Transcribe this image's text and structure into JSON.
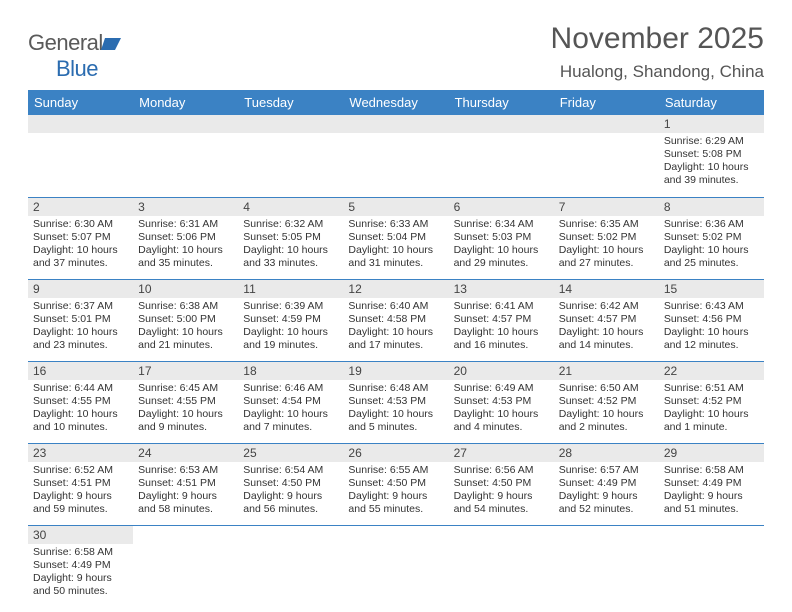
{
  "logo": {
    "text1": "General",
    "text2": "Blue"
  },
  "title": "November 2025",
  "subtitle": "Hualong, Shandong, China",
  "colors": {
    "header_bg": "#3b82c4",
    "header_fg": "#ffffff",
    "daynum_bg": "#eaeaea",
    "row_border": "#3b82c4",
    "title_color": "#555555",
    "logo_gray": "#5a5a5a",
    "logo_blue": "#2b6cb0"
  },
  "weekdays": [
    "Sunday",
    "Monday",
    "Tuesday",
    "Wednesday",
    "Thursday",
    "Friday",
    "Saturday"
  ],
  "first_weekday_index": 6,
  "days": [
    {
      "n": 1,
      "sunrise": "6:29 AM",
      "sunset": "5:08 PM",
      "dl_h": 10,
      "dl_m": 39
    },
    {
      "n": 2,
      "sunrise": "6:30 AM",
      "sunset": "5:07 PM",
      "dl_h": 10,
      "dl_m": 37
    },
    {
      "n": 3,
      "sunrise": "6:31 AM",
      "sunset": "5:06 PM",
      "dl_h": 10,
      "dl_m": 35
    },
    {
      "n": 4,
      "sunrise": "6:32 AM",
      "sunset": "5:05 PM",
      "dl_h": 10,
      "dl_m": 33
    },
    {
      "n": 5,
      "sunrise": "6:33 AM",
      "sunset": "5:04 PM",
      "dl_h": 10,
      "dl_m": 31
    },
    {
      "n": 6,
      "sunrise": "6:34 AM",
      "sunset": "5:03 PM",
      "dl_h": 10,
      "dl_m": 29
    },
    {
      "n": 7,
      "sunrise": "6:35 AM",
      "sunset": "5:02 PM",
      "dl_h": 10,
      "dl_m": 27
    },
    {
      "n": 8,
      "sunrise": "6:36 AM",
      "sunset": "5:02 PM",
      "dl_h": 10,
      "dl_m": 25
    },
    {
      "n": 9,
      "sunrise": "6:37 AM",
      "sunset": "5:01 PM",
      "dl_h": 10,
      "dl_m": 23
    },
    {
      "n": 10,
      "sunrise": "6:38 AM",
      "sunset": "5:00 PM",
      "dl_h": 10,
      "dl_m": 21
    },
    {
      "n": 11,
      "sunrise": "6:39 AM",
      "sunset": "4:59 PM",
      "dl_h": 10,
      "dl_m": 19
    },
    {
      "n": 12,
      "sunrise": "6:40 AM",
      "sunset": "4:58 PM",
      "dl_h": 10,
      "dl_m": 17
    },
    {
      "n": 13,
      "sunrise": "6:41 AM",
      "sunset": "4:57 PM",
      "dl_h": 10,
      "dl_m": 16
    },
    {
      "n": 14,
      "sunrise": "6:42 AM",
      "sunset": "4:57 PM",
      "dl_h": 10,
      "dl_m": 14
    },
    {
      "n": 15,
      "sunrise": "6:43 AM",
      "sunset": "4:56 PM",
      "dl_h": 10,
      "dl_m": 12
    },
    {
      "n": 16,
      "sunrise": "6:44 AM",
      "sunset": "4:55 PM",
      "dl_h": 10,
      "dl_m": 10
    },
    {
      "n": 17,
      "sunrise": "6:45 AM",
      "sunset": "4:55 PM",
      "dl_h": 10,
      "dl_m": 9
    },
    {
      "n": 18,
      "sunrise": "6:46 AM",
      "sunset": "4:54 PM",
      "dl_h": 10,
      "dl_m": 7
    },
    {
      "n": 19,
      "sunrise": "6:48 AM",
      "sunset": "4:53 PM",
      "dl_h": 10,
      "dl_m": 5
    },
    {
      "n": 20,
      "sunrise": "6:49 AM",
      "sunset": "4:53 PM",
      "dl_h": 10,
      "dl_m": 4
    },
    {
      "n": 21,
      "sunrise": "6:50 AM",
      "sunset": "4:52 PM",
      "dl_h": 10,
      "dl_m": 2
    },
    {
      "n": 22,
      "sunrise": "6:51 AM",
      "sunset": "4:52 PM",
      "dl_h": 10,
      "dl_m": 1
    },
    {
      "n": 23,
      "sunrise": "6:52 AM",
      "sunset": "4:51 PM",
      "dl_h": 9,
      "dl_m": 59
    },
    {
      "n": 24,
      "sunrise": "6:53 AM",
      "sunset": "4:51 PM",
      "dl_h": 9,
      "dl_m": 58
    },
    {
      "n": 25,
      "sunrise": "6:54 AM",
      "sunset": "4:50 PM",
      "dl_h": 9,
      "dl_m": 56
    },
    {
      "n": 26,
      "sunrise": "6:55 AM",
      "sunset": "4:50 PM",
      "dl_h": 9,
      "dl_m": 55
    },
    {
      "n": 27,
      "sunrise": "6:56 AM",
      "sunset": "4:50 PM",
      "dl_h": 9,
      "dl_m": 54
    },
    {
      "n": 28,
      "sunrise": "6:57 AM",
      "sunset": "4:49 PM",
      "dl_h": 9,
      "dl_m": 52
    },
    {
      "n": 29,
      "sunrise": "6:58 AM",
      "sunset": "4:49 PM",
      "dl_h": 9,
      "dl_m": 51
    },
    {
      "n": 30,
      "sunrise": "6:58 AM",
      "sunset": "4:49 PM",
      "dl_h": 9,
      "dl_m": 50
    }
  ]
}
